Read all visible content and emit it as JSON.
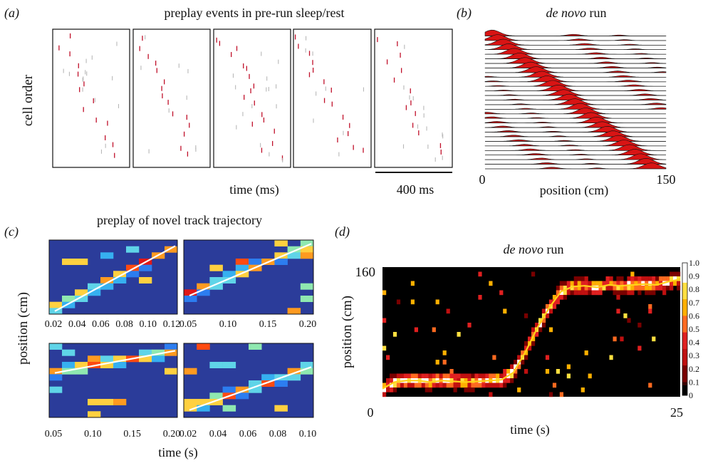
{
  "colors": {
    "spike_red": "#c0102a",
    "spike_grey": "#b8b8b8",
    "field_fill": "#d81414",
    "heat_bg": "#2b3c9a",
    "black_bg": "#000000",
    "fit_line": "#ffffff",
    "trajectory": "#ffd21a"
  },
  "panel_a": {
    "letter": "(a)",
    "title": "preplay events in pre-run sleep/rest",
    "ylabel": "cell order",
    "xlabel": "time (ms)",
    "scalebar_label": "400 ms",
    "num_events": 5
  },
  "panel_b": {
    "letter": "(b)",
    "title_italic": "de novo",
    "title_rest": " run",
    "xlabel": "position (cm)",
    "x_ticks": [
      "0",
      "150"
    ],
    "num_cells": 30
  },
  "panel_c": {
    "letter": "(c)",
    "title": "preplay of novel track trajectory",
    "ylabel": "position (cm)",
    "xlabel": "time (s)",
    "subplots": [
      {
        "id": "c1",
        "xticks": [
          "0.02",
          "0.04",
          "0.06",
          "0.08",
          "0.10",
          "0.12"
        ],
        "fit": [
          0.04,
          0.92
        ]
      },
      {
        "id": "c2",
        "xticks": [
          "0.05",
          "0.10",
          "0.15",
          "0.20"
        ],
        "fit": [
          0.25,
          0.95
        ]
      },
      {
        "id": "c3",
        "xticks": [
          "0.05",
          "0.10",
          "0.15",
          "0.20"
        ],
        "fit": [
          0.6,
          0.9
        ]
      },
      {
        "id": "c4",
        "xticks": [
          "0.02",
          "0.04",
          "0.06",
          "0.08",
          "0.10"
        ],
        "fit": [
          0.1,
          0.68
        ]
      }
    ]
  },
  "panel_d": {
    "letter": "(d)",
    "title_italic": "de novo",
    "title_rest": " run",
    "ylabel": "position (cm)",
    "xlabel": "time (s)",
    "x_ticks": [
      "0",
      "25"
    ],
    "y_ticks": [
      "160"
    ],
    "colorbar_ticks": [
      "1.0",
      "0.9",
      "0.8",
      "0.7",
      "0.6",
      "0.5",
      "0.4",
      "0.3",
      "0.2",
      "0.1",
      "0"
    ]
  },
  "chart_data": [
    {
      "type": "scatter",
      "title": "preplay events in pre-run sleep/rest",
      "xlabel": "time (ms)",
      "ylabel": "cell order",
      "scale_bar": "400 ms",
      "events": 5
    },
    {
      "type": "area",
      "title": "de novo run",
      "xlabel": "position (cm)",
      "xlim": [
        0,
        150
      ],
      "cells": 30
    },
    {
      "type": "heatmap",
      "title": "preplay of novel track trajectory",
      "xlabel": "time (s)",
      "ylabel": "position (cm)",
      "subplots": [
        {
          "xlim": [
            0.01,
            0.13
          ],
          "x_ticks": [
            0.02,
            0.04,
            0.06,
            0.08,
            0.1,
            0.12
          ]
        },
        {
          "xlim": [
            0.02,
            0.21
          ],
          "x_ticks": [
            0.05,
            0.1,
            0.15,
            0.2
          ]
        },
        {
          "xlim": [
            0.03,
            0.23
          ],
          "x_ticks": [
            0.05,
            0.1,
            0.15,
            0.2
          ]
        },
        {
          "xlim": [
            0.01,
            0.105
          ],
          "x_ticks": [
            0.02,
            0.04,
            0.06,
            0.08,
            0.1
          ]
        }
      ]
    },
    {
      "type": "heatmap",
      "title": "de novo run",
      "xlabel": "time (s)",
      "ylabel": "position (cm)",
      "xlim": [
        0,
        25
      ],
      "ylim": [
        0,
        160
      ],
      "colorbar_range": [
        0,
        1.0
      ],
      "trajectory": {
        "t": [
          0,
          1,
          2,
          3,
          4,
          5,
          6,
          7,
          8,
          9,
          10,
          11,
          12,
          13,
          14,
          15,
          16,
          17,
          18,
          19,
          20,
          21,
          22,
          23,
          24,
          25
        ],
        "position": [
          10,
          18,
          20,
          20,
          18,
          20,
          19,
          18,
          19,
          20,
          21,
          30,
          55,
          85,
          110,
          130,
          136,
          137,
          135,
          138,
          137,
          138,
          139,
          138,
          142,
          145
        ]
      }
    }
  ]
}
